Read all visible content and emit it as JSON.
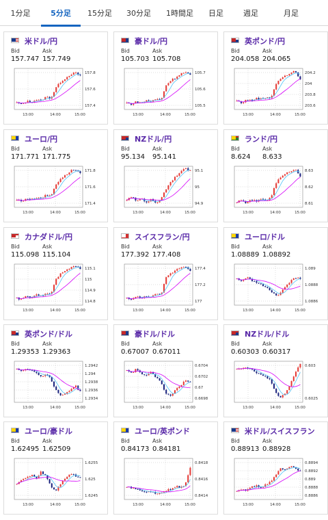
{
  "tabs": [
    {
      "label": "1分足",
      "active": false
    },
    {
      "label": "5分足",
      "active": true
    },
    {
      "label": "15分足",
      "active": false
    },
    {
      "label": "30分足",
      "active": false
    },
    {
      "label": "1時間足",
      "active": false
    },
    {
      "label": "日足",
      "active": false
    },
    {
      "label": "週足",
      "active": false
    },
    {
      "label": "月足",
      "active": false
    }
  ],
  "colors": {
    "accent": "#1565c0",
    "up": "#e53935",
    "down": "#1a237e",
    "ma_short": "#4fc3f7",
    "ma_long": "#d500f9",
    "title": "#5a2aa8"
  },
  "labels": {
    "bid": "Bid",
    "ask": "Ask"
  },
  "cards": [
    {
      "pair": "米ドル/円",
      "flag": "us-flag",
      "bid": "157.747",
      "ask": "157.749",
      "y_ticks": [
        "157.8",
        "157.6",
        "157.4"
      ],
      "x_ticks": [
        "13:00",
        "14:00",
        "15:00"
      ],
      "chart_data": {
        "type": "candlestick",
        "x_range": [
          "12:30",
          "15:00"
        ],
        "y_range": [
          157.33,
          157.88
        ],
        "trend": [
          157.42,
          157.4,
          157.44,
          157.43,
          157.46,
          157.45,
          157.5,
          157.48,
          157.62,
          157.7,
          157.75,
          157.8,
          157.82,
          157.78
        ]
      }
    },
    {
      "pair": "豪ドル/円",
      "flag": "au-flag",
      "bid": "105.703",
      "ask": "105.708",
      "y_ticks": [
        "105.7",
        "105.6",
        "105.5"
      ],
      "x_ticks": [
        "13:00",
        "14:00",
        "15:00"
      ],
      "chart_data": {
        "type": "candlestick",
        "x_range": [
          "12:30",
          "15:00"
        ],
        "y_range": [
          105.44,
          105.75
        ],
        "trend": [
          105.49,
          105.48,
          105.5,
          105.49,
          105.51,
          105.5,
          105.52,
          105.51,
          105.62,
          105.66,
          105.68,
          105.71,
          105.72,
          105.7
        ]
      }
    },
    {
      "pair": "英ポンド/円",
      "flag": "gb-flag",
      "bid": "204.058",
      "ask": "204.065",
      "y_ticks": [
        "204.2",
        "204",
        "203.8",
        "203.6"
      ],
      "x_ticks": [
        "13:00",
        "14:00",
        "15:00"
      ],
      "chart_data": {
        "type": "candlestick",
        "x_range": [
          "12:30",
          "15:00"
        ],
        "y_range": [
          203.55,
          204.25
        ],
        "trend": [
          203.7,
          203.66,
          203.72,
          203.7,
          203.74,
          203.73,
          203.76,
          203.75,
          203.98,
          204.08,
          204.12,
          204.18,
          204.2,
          204.06
        ]
      }
    },
    {
      "pair": "ユーロ/円",
      "flag": "eu-flag",
      "bid": "171.771",
      "ask": "171.775",
      "y_ticks": [
        "171.8",
        "171.6",
        "171.4"
      ],
      "x_ticks": [
        "13:00",
        "14:00",
        "15:00"
      ],
      "chart_data": {
        "type": "candlestick",
        "x_range": [
          "12:30",
          "15:00"
        ],
        "y_range": [
          171.32,
          171.86
        ],
        "trend": [
          171.42,
          171.4,
          171.44,
          171.42,
          171.45,
          171.44,
          171.48,
          171.47,
          171.62,
          171.7,
          171.74,
          171.8,
          171.82,
          171.77
        ]
      }
    },
    {
      "pair": "NZドル/円",
      "flag": "nz-flag",
      "bid": "95.134",
      "ask": "95.141",
      "y_ticks": [
        "95.1",
        "95",
        "94.9"
      ],
      "x_ticks": [
        "13:00",
        "14:00",
        "15:00"
      ],
      "chart_data": {
        "type": "candlestick",
        "x_range": [
          "12:30",
          "15:00"
        ],
        "y_range": [
          94.84,
          95.16
        ],
        "trend": [
          94.9,
          94.92,
          94.89,
          94.91,
          94.88,
          94.9,
          94.87,
          94.91,
          94.98,
          95.04,
          95.08,
          95.12,
          95.14,
          95.13
        ]
      }
    },
    {
      "pair": "ランド/円",
      "flag": "za-flag",
      "bid": "8.624",
      "ask": "8.633",
      "y_ticks": [
        "8.63",
        "8.62",
        "8.61"
      ],
      "x_ticks": [
        "13:00",
        "14:00",
        "15:00"
      ],
      "chart_data": {
        "type": "candlestick",
        "x_range": [
          "12:30",
          "15:00"
        ],
        "y_range": [
          8.6,
          8.637
        ],
        "trend": [
          8.605,
          8.606,
          8.604,
          8.607,
          8.605,
          8.608,
          8.606,
          8.609,
          8.622,
          8.627,
          8.63,
          8.633,
          8.634,
          8.628
        ]
      }
    },
    {
      "pair": "カナダドル/円",
      "flag": "ca-flag",
      "bid": "115.098",
      "ask": "115.104",
      "y_ticks": [
        "115.1",
        "115",
        "114.9",
        "114.8"
      ],
      "x_ticks": [
        "13:00",
        "14:00",
        "15:00"
      ],
      "chart_data": {
        "type": "candlestick",
        "x_range": [
          "12:30",
          "15:00"
        ],
        "y_range": [
          114.78,
          115.14
        ],
        "trend": [
          114.84,
          114.83,
          114.86,
          114.84,
          114.87,
          114.86,
          114.89,
          114.88,
          115.0,
          115.06,
          115.08,
          115.11,
          115.12,
          115.1
        ]
      }
    },
    {
      "pair": "スイスフラン/円",
      "flag": "ch-flag",
      "bid": "177.392",
      "ask": "177.408",
      "y_ticks": [
        "177.4",
        "177.2",
        "177"
      ],
      "x_ticks": [
        "13:00",
        "14:00",
        "15:00"
      ],
      "chart_data": {
        "type": "candlestick",
        "x_range": [
          "12:30",
          "15:00"
        ],
        "y_range": [
          176.95,
          177.48
        ],
        "trend": [
          177.04,
          177.03,
          177.06,
          177.04,
          177.07,
          177.06,
          177.09,
          177.08,
          177.3,
          177.36,
          177.4,
          177.44,
          177.45,
          177.4
        ]
      }
    },
    {
      "pair": "ユーロ/ドル",
      "flag": "eu-flag",
      "bid": "1.08889",
      "ask": "1.08892",
      "y_ticks": [
        "1.089",
        "1.0888",
        "1.0886"
      ],
      "x_ticks": [
        "13:00",
        "14:00",
        "15:00"
      ],
      "chart_data": {
        "type": "candlestick",
        "x_range": [
          "12:30",
          "15:00"
        ],
        "y_range": [
          1.08845,
          1.08912
        ],
        "trend": [
          1.08888,
          1.08885,
          1.0889,
          1.08886,
          1.08882,
          1.08878,
          1.08874,
          1.08868,
          1.0886,
          1.08865,
          1.08876,
          1.08884,
          1.0889,
          1.08889
        ]
      }
    },
    {
      "pair": "英ポンド/ドル",
      "flag": "gb-flag",
      "bid": "1.29353",
      "ask": "1.29363",
      "y_ticks": [
        "1.2942",
        "1.294",
        "1.2938",
        "1.2936",
        "1.2934"
      ],
      "x_ticks": [
        "13:00",
        "14:00",
        "15:00"
      ],
      "chart_data": {
        "type": "candlestick",
        "x_range": [
          "12:30",
          "15:00"
        ],
        "y_range": [
          1.2933,
          1.29428
        ],
        "trend": [
          1.2941,
          1.29405,
          1.29412,
          1.29406,
          1.294,
          1.29392,
          1.29398,
          1.29385,
          1.2936,
          1.29345,
          1.29352,
          1.2936,
          1.2937,
          1.29355
        ]
      }
    },
    {
      "pair": "豪ドル/ドル",
      "flag": "au-flag",
      "bid": "0.67007",
      "ask": "0.67011",
      "y_ticks": [
        "0.6704",
        "0.6702",
        "0.67",
        "0.6698"
      ],
      "x_ticks": [
        "13:00",
        "14:00",
        "15:00"
      ],
      "chart_data": {
        "type": "candlestick",
        "x_range": [
          "12:30",
          "15:00"
        ],
        "y_range": [
          0.66975,
          0.67045
        ],
        "trend": [
          0.6703,
          0.67025,
          0.67032,
          0.67024,
          0.6702,
          0.67026,
          0.67018,
          0.6701,
          0.6699,
          0.66985,
          0.66998,
          0.67004,
          0.67012,
          0.67009
        ]
      }
    },
    {
      "pair": "NZドル/ドル",
      "flag": "nz-flag",
      "bid": "0.60303",
      "ask": "0.60317",
      "y_ticks": [
        "0.603",
        "0.6025"
      ],
      "x_ticks": [
        "13:00",
        "14:00",
        "15:00"
      ],
      "chart_data": {
        "type": "candlestick",
        "x_range": [
          "12:30",
          "15:00"
        ],
        "y_range": [
          0.60215,
          0.60318
        ],
        "trend": [
          0.603,
          0.60298,
          0.60302,
          0.60296,
          0.6029,
          0.60285,
          0.60278,
          0.60268,
          0.6024,
          0.60225,
          0.6024,
          0.60262,
          0.6029,
          0.6031
        ]
      }
    },
    {
      "pair": "ユーロ/豪ドル",
      "flag": "eu-flag",
      "bid": "1.62495",
      "ask": "1.62509",
      "y_ticks": [
        "1.6255",
        "1.625",
        "1.6245"
      ],
      "x_ticks": [
        "13:00",
        "14:00",
        "15:00"
      ],
      "chart_data": {
        "type": "candlestick",
        "x_range": [
          "12:30",
          "15:00"
        ],
        "y_range": [
          1.62425,
          1.62565
        ],
        "trend": [
          1.6248,
          1.6249,
          1.625,
          1.6251,
          1.62498,
          1.6252,
          1.62505,
          1.6247,
          1.62455,
          1.6248,
          1.625,
          1.62515,
          1.62505,
          1.625
        ]
      }
    },
    {
      "pair": "ユーロ/英ポンド",
      "flag": "eu-flag",
      "bid": "0.84173",
      "ask": "0.84181",
      "y_ticks": [
        "0.8418",
        "0.8416",
        "0.8414"
      ],
      "x_ticks": [
        "13:00",
        "14:00",
        "15:00"
      ],
      "chart_data": {
        "type": "candlestick",
        "x_range": [
          "12:30",
          "15:00"
        ],
        "y_range": [
          0.84132,
          0.84188
        ],
        "trend": [
          0.8415,
          0.84148,
          0.84146,
          0.84144,
          0.84142,
          0.84143,
          0.8414,
          0.84142,
          0.84144,
          0.84146,
          0.8415,
          0.84148,
          0.84152,
          0.84175
        ]
      }
    },
    {
      "pair": "米ドル/スイスフラン",
      "flag": "us-flag",
      "bid": "0.88913",
      "ask": "0.88928",
      "y_ticks": [
        "0.8894",
        "0.8892",
        "0.889",
        "0.8888",
        "0.8886"
      ],
      "x_ticks": [
        "13:00",
        "14:00",
        "15:00"
      ],
      "chart_data": {
        "type": "candlestick",
        "x_range": [
          "12:30",
          "15:00"
        ],
        "y_range": [
          0.88855,
          0.88945
        ],
        "trend": [
          0.88872,
          0.88878,
          0.88875,
          0.88882,
          0.88885,
          0.8888,
          0.88888,
          0.88895,
          0.8891,
          0.88925,
          0.88918,
          0.8893,
          0.88922,
          0.88918
        ]
      }
    }
  ]
}
